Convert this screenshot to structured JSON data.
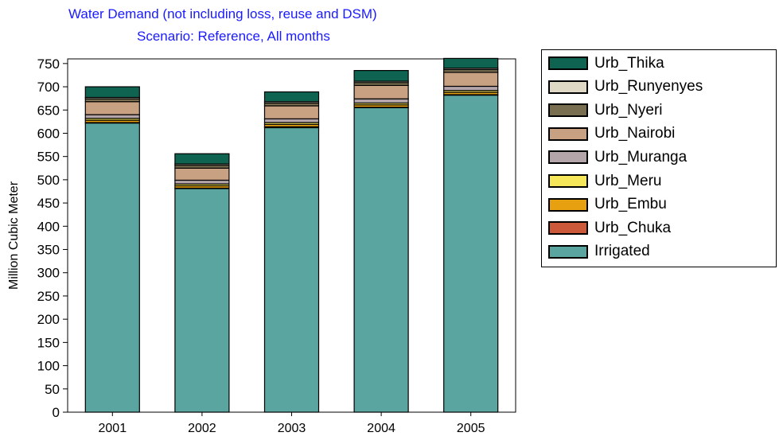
{
  "chart_data": {
    "type": "bar",
    "stacked": true,
    "title": "Water Demand (not including loss, reuse and DSM)",
    "subtitle": "Scenario: Reference,  All months",
    "ylabel": "Million Cubic Meter",
    "xlabel": "",
    "ylim": [
      0,
      760
    ],
    "yticks": [
      0,
      50,
      100,
      150,
      200,
      250,
      300,
      350,
      400,
      450,
      500,
      550,
      600,
      650,
      700,
      750
    ],
    "categories": [
      "2001",
      "2002",
      "2003",
      "2004",
      "2005"
    ],
    "legend_position": "right",
    "series": [
      {
        "name": "Irrigated",
        "color": "#5aa5a0",
        "values": [
          622,
          481,
          612,
          655,
          682
        ]
      },
      {
        "name": "Urb_Chuka",
        "color": "#cc5a3a",
        "values": [
          1,
          1,
          2,
          1,
          1
        ]
      },
      {
        "name": "Urb_Embu",
        "color": "#e6a010",
        "values": [
          5,
          5,
          5,
          5,
          5
        ]
      },
      {
        "name": "Urb_Meru",
        "color": "#f5e65a",
        "values": [
          4,
          4,
          4,
          4,
          4
        ]
      },
      {
        "name": "Urb_Muranga",
        "color": "#b4a5aa",
        "values": [
          8,
          8,
          8,
          9,
          9
        ]
      },
      {
        "name": "Urb_Nairobi",
        "color": "#c8a082",
        "values": [
          28,
          26,
          28,
          29,
          30
        ]
      },
      {
        "name": "Urb_Nyeri",
        "color": "#7a6e50",
        "values": [
          6,
          6,
          6,
          6,
          6
        ]
      },
      {
        "name": "Urb_Runyenyes",
        "color": "#ded8c4",
        "values": [
          3,
          3,
          3,
          3,
          3
        ]
      },
      {
        "name": "Urb_Thika",
        "color": "#0e6450",
        "values": [
          23,
          22,
          21,
          23,
          21
        ]
      }
    ]
  }
}
